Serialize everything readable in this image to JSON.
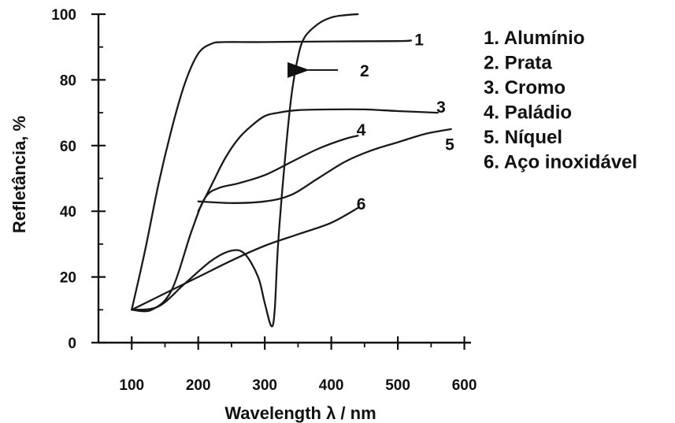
{
  "chart_data": {
    "type": "line",
    "xlabel": "Wavelength λ / nm",
    "ylabel": "Refletância, %",
    "xlim": [
      50,
      610
    ],
    "ylim": [
      0,
      100
    ],
    "xticks": [
      "100",
      "200",
      "300",
      "400",
      "500",
      "600"
    ],
    "xtick_values": [
      100,
      200,
      300,
      400,
      500,
      600
    ],
    "yticks": [
      "0",
      "20",
      "40",
      "60",
      "80",
      "100"
    ],
    "ytick_values": [
      0,
      20,
      40,
      60,
      80,
      100
    ],
    "grid": false,
    "legend_position": "right",
    "legend": [
      "1. Alumínio",
      "2. Prata",
      "3. Cromo",
      "4. Paládio",
      "5. Níquel",
      "6. Aço inoxidável"
    ],
    "series": [
      {
        "name": "1",
        "color": "#1a1a1a",
        "x": [
          100,
          120,
          140,
          160,
          180,
          200,
          220,
          240,
          300,
          400,
          500,
          520
        ],
        "y": [
          10,
          28,
          48,
          65,
          79,
          88,
          91,
          91.5,
          91.5,
          91.7,
          91.8,
          92
        ]
      },
      {
        "name": "2",
        "color": "#1a1a1a",
        "x": [
          100,
          140,
          180,
          220,
          250,
          270,
          290,
          300,
          310,
          315,
          320,
          330,
          340,
          350,
          360,
          380,
          400,
          420,
          440
        ],
        "y": [
          10,
          11,
          18,
          25,
          28,
          27,
          20,
          12,
          5,
          10,
          30,
          55,
          75,
          87,
          93,
          97,
          99,
          99.7,
          100
        ]
      },
      {
        "name": "3",
        "color": "#1a1a1a",
        "x": [
          200,
          220,
          240,
          260,
          280,
          300,
          320,
          350,
          400,
          450,
          500,
          560
        ],
        "y": [
          40,
          48,
          56,
          62,
          66,
          69,
          70,
          70.8,
          71,
          71,
          70.5,
          70
        ]
      },
      {
        "name": "4",
        "color": "#1a1a1a",
        "x": [
          100,
          130,
          160,
          190,
          210,
          230,
          260,
          300,
          340,
          380,
          420,
          440
        ],
        "y": [
          10,
          10,
          16,
          34,
          44,
          47,
          48.5,
          51,
          55,
          59,
          62,
          63
        ]
      },
      {
        "name": "5",
        "color": "#1a1a1a",
        "x": [
          200,
          250,
          300,
          340,
          380,
          420,
          460,
          500,
          540,
          580
        ],
        "y": [
          43,
          42.5,
          43,
          45,
          50,
          55,
          58.5,
          61,
          63.5,
          65
        ]
      },
      {
        "name": "6",
        "color": "#1a1a1a",
        "x": [
          100,
          150,
          200,
          250,
          300,
          350,
          400,
          440
        ],
        "y": [
          10,
          15,
          20,
          25,
          29.5,
          33,
          36.5,
          41
        ]
      }
    ],
    "curve_labels": [
      {
        "text": "1",
        "x": 532,
        "y": 92.5
      },
      {
        "text": "2",
        "x": 450,
        "y": 83
      },
      {
        "text": "3",
        "x": 565,
        "y": 72
      },
      {
        "text": "4",
        "x": 445,
        "y": 65
      },
      {
        "text": "5",
        "x": 578,
        "y": 60.5
      },
      {
        "text": "6",
        "x": 445,
        "y": 42.5
      }
    ],
    "arrow": {
      "label": "2",
      "from_x": 410,
      "to_x": 365,
      "y": 83
    }
  }
}
